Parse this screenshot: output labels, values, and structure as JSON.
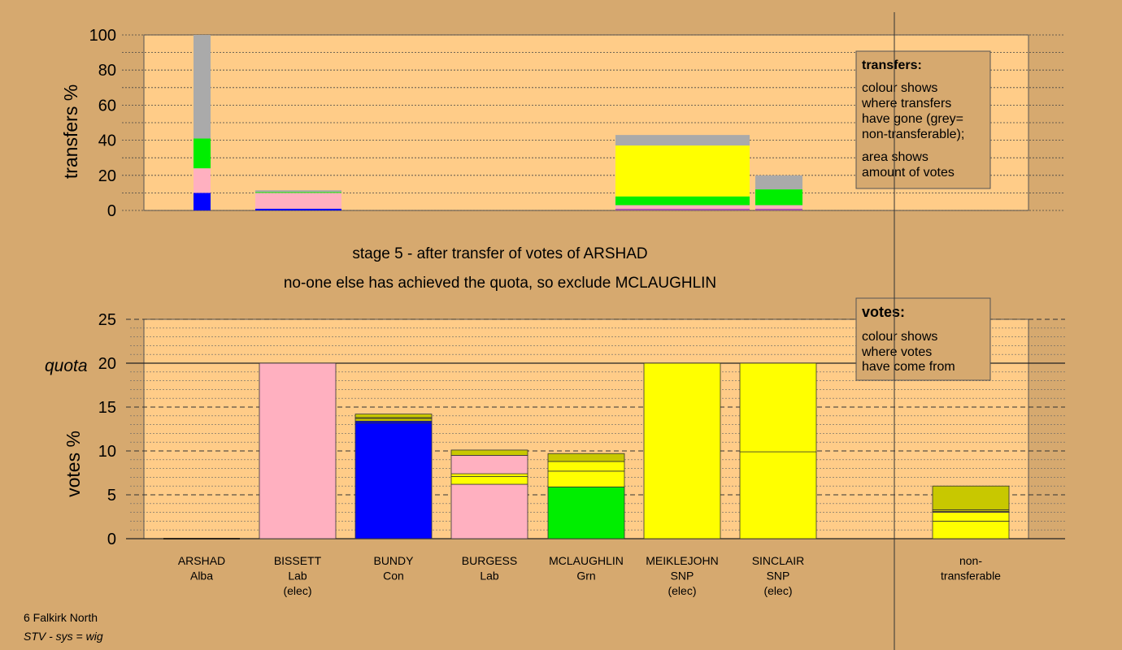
{
  "colors": {
    "background": "#d6a96f",
    "plot_bg": "#ffcc88",
    "SNP": "#ffff00",
    "Lab": "#ffb0c0",
    "Con": "#0000ff",
    "Grn": "#00ee00",
    "Alba": "#c8c800",
    "non_transferable": "#aaaaaa",
    "LibDem": "#aa55aa"
  },
  "headline": {
    "line1": "stage 5 - after transfer of votes of ARSHAD",
    "line2": "no-one else has achieved the quota, so exclude MCLAUGHLIN"
  },
  "transfers_legend": {
    "title": "transfers:",
    "lines": [
      "colour shows",
      "where transfers",
      "have gone (grey=",
      "non-transferable);"
    ],
    "lines2": [
      "area shows",
      "amount of votes"
    ]
  },
  "votes_legend": {
    "title": "votes:",
    "lines": [
      "colour shows",
      "where votes",
      "have come from"
    ]
  },
  "footer": {
    "ward": "6 Falkirk North",
    "system": "STV - sys = wig"
  },
  "chart_data": [
    {
      "type": "bar",
      "stacked": true,
      "title": "transfers",
      "ylabel": "transfers %",
      "ylim": [
        0,
        100
      ],
      "yticks": [
        0,
        20,
        40,
        60,
        80,
        100
      ],
      "grid": "dotted, every 10",
      "bars": [
        {
          "candidate": "ARSHAD",
          "width_votes": 1.5,
          "segments": [
            {
              "color": "Con",
              "value": 10
            },
            {
              "color": "Lab",
              "value": 14
            },
            {
              "color": "Grn",
              "value": 17
            },
            {
              "color": "non_transferable",
              "value": 59
            }
          ]
        },
        {
          "candidate": "BISSETT",
          "width_votes": 8.0,
          "segments": [
            {
              "color": "Con",
              "value": 1
            },
            {
              "color": "Lab",
              "value": 9
            },
            {
              "color": "Grn",
              "value": 0.5
            },
            {
              "color": "non_transferable",
              "value": 1
            }
          ]
        },
        {
          "candidate": "MEIKLEJOHN",
          "width_votes": 12.0,
          "segments": [
            {
              "color": "LibDem",
              "value": 1
            },
            {
              "color": "Lab",
              "value": 2
            },
            {
              "color": "Grn",
              "value": 5
            },
            {
              "color": "SNP",
              "value": 29
            },
            {
              "color": "non_transferable",
              "value": 6
            }
          ]
        },
        {
          "candidate": "SINCLAIR",
          "width_votes": 4.2,
          "segments": [
            {
              "color": "LibDem",
              "value": 1
            },
            {
              "color": "Lab",
              "value": 2
            },
            {
              "color": "Grn",
              "value": 9
            },
            {
              "color": "non_transferable",
              "value": 8
            }
          ]
        }
      ]
    },
    {
      "type": "bar",
      "stacked": true,
      "title": "votes",
      "ylabel": "votes %",
      "ylim": [
        0,
        25
      ],
      "yticks": [
        0,
        5,
        10,
        15,
        20,
        25
      ],
      "quota": 20,
      "quota_label": "quota",
      "categories": [
        "ARSHAD",
        "BISSETT",
        "BUNDY",
        "BURGESS",
        "MCLAUGHLIN",
        "MEIKLEJOHN",
        "SINCLAIR",
        "non-transferable"
      ],
      "labels": [
        [
          "ARSHAD",
          "Alba"
        ],
        [
          "BISSETT",
          "Lab",
          "(elec)"
        ],
        [
          "BUNDY",
          "Con"
        ],
        [
          "BURGESS",
          "Lab"
        ],
        [
          "MCLAUGHLIN",
          "Grn"
        ],
        [
          "MEIKLEJOHN",
          "SNP",
          "(elec)"
        ],
        [
          "SINCLAIR",
          "SNP",
          "(elec)"
        ],
        [
          "non-",
          "transferable"
        ]
      ],
      "bars": [
        {
          "candidate": "ARSHAD",
          "segments": []
        },
        {
          "candidate": "BISSETT",
          "segments": [
            {
              "color": "Lab",
              "value": 20
            }
          ]
        },
        {
          "candidate": "BUNDY",
          "segments": [
            {
              "color": "Con",
              "value": 13.2
            },
            {
              "color": "Con",
              "value": 0.2
            },
            {
              "color": "Alba",
              "value": 0.3
            },
            {
              "color": "SNP",
              "value": 0.1
            },
            {
              "color": "Alba",
              "value": 0.4
            }
          ]
        },
        {
          "candidate": "BURGESS",
          "segments": [
            {
              "color": "Lab",
              "value": 6.2
            },
            {
              "color": "SNP",
              "value": 0.9
            },
            {
              "color": "SNP",
              "value": 0.3
            },
            {
              "color": "Lab",
              "value": 2.1
            },
            {
              "color": "Alba",
              "value": 0.6
            }
          ]
        },
        {
          "candidate": "MCLAUGHLIN",
          "segments": [
            {
              "color": "Grn",
              "value": 5.9
            },
            {
              "color": "SNP",
              "value": 1.8
            },
            {
              "color": "SNP",
              "value": 1.1
            },
            {
              "color": "Alba",
              "value": 0.9
            }
          ]
        },
        {
          "candidate": "MEIKLEJOHN",
          "segments": [
            {
              "color": "SNP",
              "value": 20
            }
          ]
        },
        {
          "candidate": "SINCLAIR",
          "segments": [
            {
              "color": "SNP",
              "value": 9.9
            },
            {
              "color": "SNP",
              "value": 10.1
            }
          ]
        },
        {
          "candidate": "non-transferable",
          "segments": [
            {
              "color": "SNP",
              "value": 2.0
            },
            {
              "color": "SNP",
              "value": 1.0
            },
            {
              "color": "LibDem",
              "value": 0.1
            },
            {
              "color": "Alba",
              "value": 0.2
            },
            {
              "color": "Alba",
              "value": 2.7
            }
          ]
        }
      ]
    }
  ]
}
